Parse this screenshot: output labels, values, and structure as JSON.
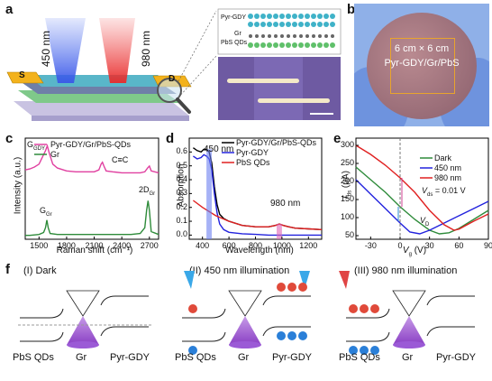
{
  "panels": {
    "a": {
      "label": "a",
      "wl_blue": "450 nm",
      "wl_red": "980 nm",
      "source": "S",
      "drain": "D",
      "inset_layers": [
        "Pyr-GDY",
        "Gr",
        "PbS QDs"
      ]
    },
    "b": {
      "label": "b",
      "line1": "6 cm × 6 cm",
      "line2": "Pyr-GDY/Gr/PbS"
    },
    "c": {
      "label": "c",
      "legend": [
        "Pyr-GDY/Gr/PbS-QDs",
        "Gr"
      ],
      "annotations": {
        "ggdy": "GDY",
        "cc": "C≡C",
        "ggr": "Gr",
        "twod": "Gr"
      },
      "ylabel": "Intensity (a.u.)",
      "xlabel": "Raman shift (cm⁻¹)",
      "xticks": [
        "1500",
        "1800",
        "2100",
        "2400",
        "2700"
      ]
    },
    "d": {
      "label": "d",
      "legend": [
        "Pyr-GDY/Gr/PbS-QDs",
        "Pyr-GDY",
        "PbS QDs"
      ],
      "ann_450": "450 nm",
      "ann_980": "980 nm",
      "ylabel": "Absorption",
      "xlabel": "Wavelength (nm)",
      "yticks": [
        "0.0",
        "0.1",
        "0.2",
        "0.3",
        "0.4",
        "0.5",
        "0.6"
      ],
      "xticks": [
        "400",
        "600",
        "800",
        "1000",
        "1200"
      ]
    },
    "e": {
      "label": "e",
      "legend": [
        "Dark",
        "450 nm",
        "980 nm"
      ],
      "vds": "= 0.01 V",
      "vd": "D",
      "ylabel_unit": "(μA)",
      "xlabel_unit": "(V)",
      "yticks": [
        "50",
        "100",
        "150",
        "200",
        "250",
        "300"
      ],
      "xticks": [
        "-30",
        "0",
        "30",
        "60",
        "90"
      ]
    },
    "f": {
      "label": "f",
      "titles": [
        "(I) Dark",
        "(II) 450 nm illumination",
        "(III) 980 nm illumination"
      ],
      "material_labels": [
        "PbS QDs",
        "Gr",
        "Pyr-GDY"
      ]
    }
  },
  "chart_data": [
    {
      "type": "line",
      "panel": "c",
      "xlabel": "Raman shift (cm⁻¹)",
      "ylabel": "Intensity (a.u.)",
      "xlim": [
        1350,
        2800
      ],
      "series": [
        {
          "name": "Pyr-GDY/Gr/PbS-QDs",
          "color": "#e040a0",
          "x": [
            1350,
            1400,
            1450,
            1500,
            1540,
            1570,
            1590,
            1610,
            1650,
            1700,
            1800,
            1900,
            2000,
            2100,
            2150,
            2175,
            2190,
            2205,
            2230,
            2300,
            2400,
            2500,
            2600,
            2650,
            2680,
            2700,
            2720,
            2800
          ],
          "y": [
            0.72,
            0.73,
            0.75,
            0.78,
            0.86,
            0.92,
            0.97,
            0.9,
            0.78,
            0.74,
            0.71,
            0.7,
            0.7,
            0.7,
            0.72,
            0.78,
            0.8,
            0.76,
            0.71,
            0.7,
            0.69,
            0.69,
            0.69,
            0.7,
            0.74,
            0.76,
            0.71,
            0.69
          ]
        },
        {
          "name": "Gr",
          "color": "#2e8b3a",
          "x": [
            1350,
            1400,
            1500,
            1550,
            1570,
            1585,
            1600,
            1620,
            1700,
            1900,
            2100,
            2300,
            2500,
            2600,
            2650,
            2670,
            2685,
            2700,
            2720,
            2800
          ],
          "y": [
            0.04,
            0.04,
            0.05,
            0.07,
            0.12,
            0.2,
            0.12,
            0.06,
            0.05,
            0.05,
            0.05,
            0.05,
            0.05,
            0.06,
            0.12,
            0.3,
            0.4,
            0.3,
            0.08,
            0.05
          ]
        }
      ]
    },
    {
      "type": "line",
      "panel": "d",
      "xlabel": "Wavelength (nm)",
      "ylabel": "Absorption",
      "xlim": [
        300,
        1300
      ],
      "ylim": [
        -0.03,
        0.7
      ],
      "series": [
        {
          "name": "Pyr-GDY/Gr/PbS-QDs",
          "color": "#000000",
          "x": [
            330,
            360,
            390,
            410,
            430,
            450,
            470,
            490,
            510,
            530,
            560,
            600,
            700,
            800,
            900,
            950,
            980,
            1010,
            1050,
            1100,
            1200,
            1300
          ],
          "y": [
            0.63,
            0.61,
            0.6,
            0.62,
            0.62,
            0.6,
            0.52,
            0.35,
            0.22,
            0.15,
            0.12,
            0.1,
            0.07,
            0.06,
            0.06,
            0.07,
            0.08,
            0.07,
            0.06,
            0.05,
            0.045,
            0.04
          ]
        },
        {
          "name": "Pyr-GDY",
          "color": "#2222dd",
          "x": [
            330,
            360,
            390,
            410,
            430,
            450,
            470,
            490,
            510,
            530,
            560,
            600,
            700,
            800,
            900,
            1000,
            1100,
            1200,
            1300
          ],
          "y": [
            0.57,
            0.55,
            0.56,
            0.58,
            0.57,
            0.55,
            0.47,
            0.3,
            0.16,
            0.08,
            0.04,
            0.02,
            0.01,
            0.005,
            0.0,
            0.0,
            0.0,
            0.0,
            0.0
          ]
        },
        {
          "name": "PbS QDs",
          "color": "#e02020",
          "x": [
            330,
            400,
            500,
            600,
            700,
            800,
            900,
            950,
            980,
            1010,
            1050,
            1100,
            1200,
            1300
          ],
          "y": [
            0.25,
            0.2,
            0.14,
            0.1,
            0.07,
            0.06,
            0.06,
            0.07,
            0.08,
            0.07,
            0.06,
            0.05,
            0.045,
            0.04
          ]
        }
      ]
    },
    {
      "type": "line",
      "panel": "e",
      "xlim": [
        -45,
        90
      ],
      "ylim": [
        40,
        320
      ],
      "series": [
        {
          "name": "Dark",
          "color": "#2e8b3a",
          "x": [
            -45,
            -30,
            -15,
            0,
            15,
            30,
            40,
            50,
            60,
            75,
            90
          ],
          "y": [
            240,
            205,
            170,
            130,
            95,
            65,
            55,
            58,
            70,
            95,
            120
          ]
        },
        {
          "name": "450 nm",
          "color": "#2222dd",
          "x": [
            -45,
            -30,
            -15,
            0,
            10,
            20,
            30,
            45,
            60,
            75,
            90
          ],
          "y": [
            205,
            165,
            125,
            85,
            60,
            55,
            65,
            85,
            105,
            125,
            145
          ]
        },
        {
          "name": "980 nm",
          "color": "#e02020",
          "x": [
            -45,
            -30,
            -15,
            0,
            15,
            30,
            45,
            55,
            60,
            75,
            90
          ],
          "y": [
            300,
            275,
            245,
            210,
            170,
            120,
            80,
            65,
            68,
            90,
            110
          ]
        }
      ]
    }
  ]
}
